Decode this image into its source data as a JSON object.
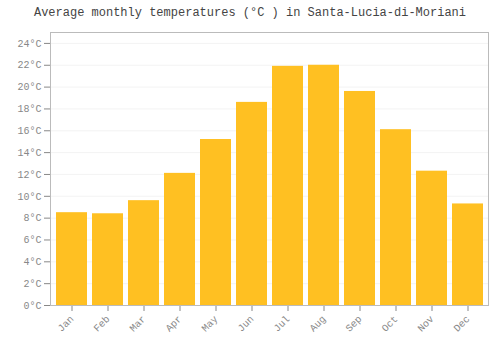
{
  "chart_data": {
    "type": "bar",
    "title": "Average monthly temperatures (°C ) in Santa-Lucia-di-Moriani",
    "categories": [
      "Jan",
      "Feb",
      "Mar",
      "Apr",
      "May",
      "Jun",
      "Jul",
      "Aug",
      "Sep",
      "Oct",
      "Nov",
      "Dec"
    ],
    "values": [
      8.5,
      8.4,
      9.6,
      12.1,
      15.2,
      18.6,
      21.9,
      22.0,
      19.6,
      16.1,
      12.3,
      9.3
    ],
    "color": "#FFC022",
    "ylim": [
      0,
      25
    ],
    "yticks": [
      {
        "value": 0,
        "label": "0°C"
      },
      {
        "value": 2,
        "label": "2°C"
      },
      {
        "value": 4,
        "label": "4°C"
      },
      {
        "value": 6,
        "label": "6°C"
      },
      {
        "value": 8,
        "label": "8°C"
      },
      {
        "value": 10,
        "label": "10°C"
      },
      {
        "value": 12,
        "label": "12°C"
      },
      {
        "value": 14,
        "label": "14°C"
      },
      {
        "value": 16,
        "label": "16°C"
      },
      {
        "value": 18,
        "label": "18°C"
      },
      {
        "value": 20,
        "label": "20°C"
      },
      {
        "value": 22,
        "label": "22°C"
      },
      {
        "value": 24,
        "label": "24°C"
      }
    ],
    "grid": true
  }
}
